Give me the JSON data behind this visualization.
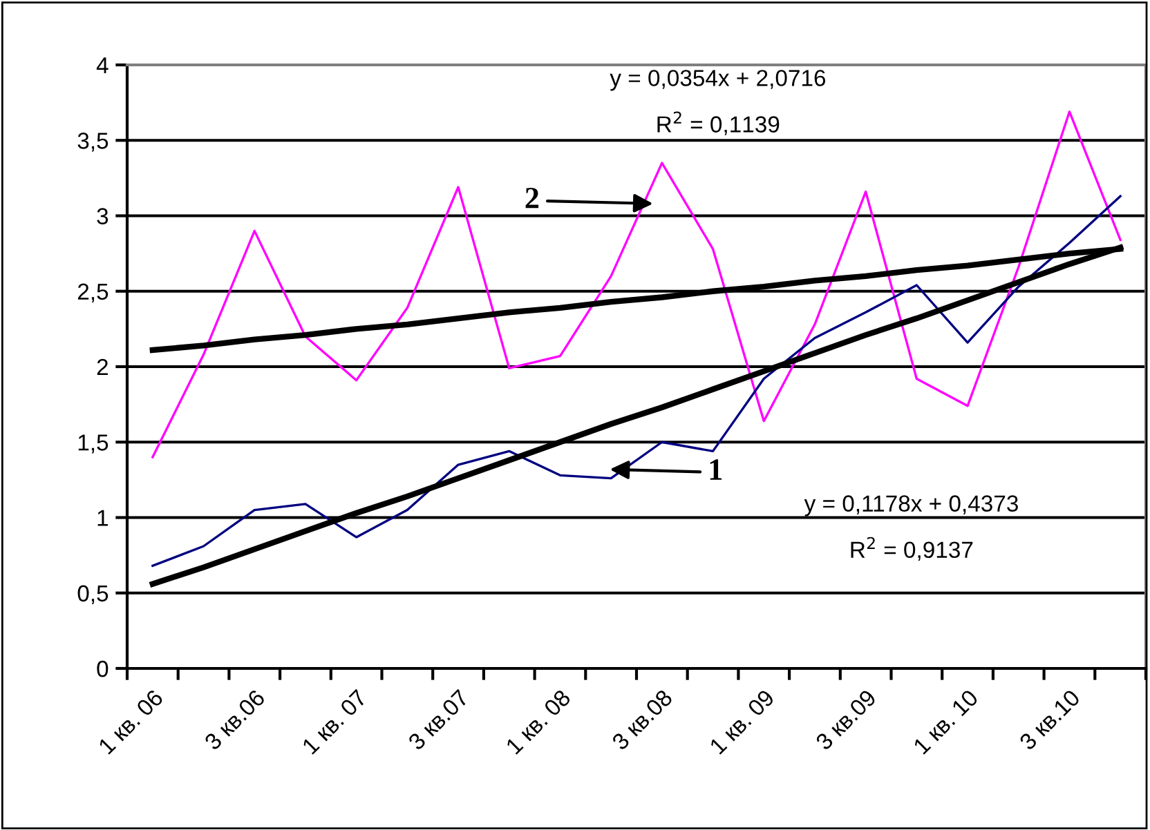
{
  "chart_data": {
    "type": "line",
    "categories": [
      "1 кв. 06",
      null,
      "3 кв.06",
      null,
      "1 кв. 07",
      null,
      "3 кв.07",
      null,
      "1 кв. 08",
      null,
      "3 кв.08",
      null,
      "1 кв. 09",
      null,
      "3 кв.09",
      null,
      "1 кв. 10",
      null,
      "3 кв.10",
      null
    ],
    "ylim": [
      0,
      4
    ],
    "yticks": [
      0,
      {
        "value": 0.5,
        "label": "0,5"
      },
      1,
      {
        "value": 1.5,
        "label": "1,5"
      },
      2,
      {
        "value": 2.5,
        "label": "2,5"
      },
      3,
      {
        "value": 3.5,
        "label": "3,5"
      },
      4
    ],
    "grid": "y",
    "marker": "none",
    "line_style": "solid",
    "series": [
      {
        "color": "#ff00ff",
        "values": [
          1.4,
          2.08,
          2.9,
          2.2,
          1.91,
          2.39,
          3.19,
          1.99,
          2.07,
          2.6,
          3.35,
          2.78,
          1.64,
          2.28,
          3.16,
          1.92,
          1.74,
          2.66,
          3.69,
          2.84
        ]
      },
      {
        "color": "#000080",
        "values": [
          0.68,
          0.81,
          1.05,
          1.09,
          0.87,
          1.05,
          1.35,
          1.44,
          1.28,
          1.26,
          1.5,
          1.44,
          1.92,
          2.19,
          2.36,
          2.54,
          2.16,
          2.53,
          2.82,
          3.13
        ]
      },
      {
        "color": "#000000",
        "values": [
          2.11,
          2.14,
          2.18,
          2.21,
          2.25,
          2.28,
          2.32,
          2.36,
          2.39,
          2.43,
          2.46,
          2.5,
          2.53,
          2.57,
          2.6,
          2.64,
          2.67,
          2.71,
          2.75,
          2.78
        ]
      },
      {
        "color": "#000000",
        "values": [
          0.56,
          0.67,
          0.79,
          0.91,
          1.03,
          1.14,
          1.26,
          1.38,
          1.5,
          1.62,
          1.73,
          1.85,
          1.97,
          2.09,
          2.21,
          2.32,
          2.44,
          2.56,
          2.68,
          2.79
        ]
      }
    ],
    "annotations": [
      "y = 0,0354x + 2,0716",
      "R$^{2}$ = 0,1139",
      "y = 0,1178x + 0,4373",
      "R$^{2}$ = 0,9137",
      "2",
      "1"
    ]
  }
}
